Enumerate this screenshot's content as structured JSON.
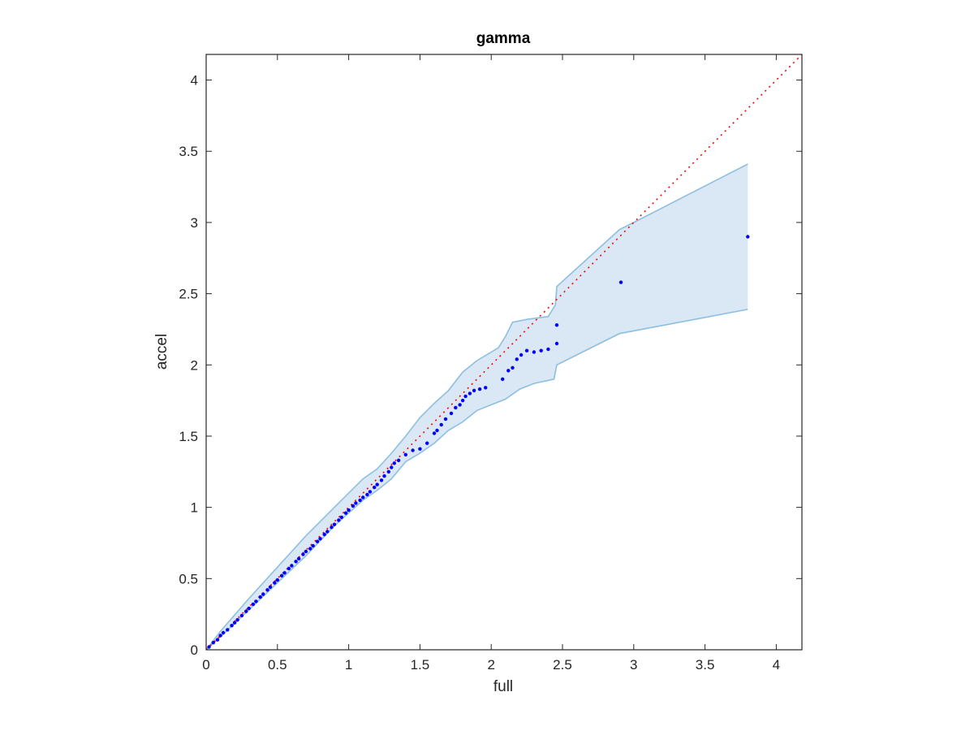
{
  "chart_data": {
    "type": "scatter",
    "title": "gamma",
    "xlabel": "full",
    "ylabel": "accel",
    "xlim": [
      0,
      4.18
    ],
    "ylim": [
      0,
      4.18
    ],
    "xticks": [
      "0",
      "0.5",
      "1",
      "1.5",
      "2",
      "2.5",
      "3",
      "3.5",
      "4"
    ],
    "yticks": [
      "0",
      "0.5",
      "1",
      "1.5",
      "2",
      "2.5",
      "3",
      "3.5",
      "4"
    ],
    "grid": false,
    "colors": {
      "points": "#0000ff",
      "reference_line": "#ff0000",
      "band_fill": "#d9e8f4",
      "band_edge": "#8dbfe0",
      "axes": "#262626"
    },
    "reference_line": {
      "style": "dotted",
      "from": [
        0,
        0
      ],
      "to": [
        4.18,
        4.18
      ]
    },
    "band_upper": [
      [
        0,
        0
      ],
      [
        0.1,
        0.13
      ],
      [
        0.3,
        0.36
      ],
      [
        0.5,
        0.58
      ],
      [
        0.7,
        0.8
      ],
      [
        0.9,
        1.0
      ],
      [
        1.1,
        1.2
      ],
      [
        1.2,
        1.27
      ],
      [
        1.3,
        1.38
      ],
      [
        1.4,
        1.5
      ],
      [
        1.5,
        1.63
      ],
      [
        1.6,
        1.73
      ],
      [
        1.7,
        1.82
      ],
      [
        1.8,
        1.95
      ],
      [
        1.9,
        2.03
      ],
      [
        2.05,
        2.12
      ],
      [
        2.1,
        2.2
      ],
      [
        2.15,
        2.3
      ],
      [
        2.25,
        2.32
      ],
      [
        2.4,
        2.34
      ],
      [
        2.45,
        2.42
      ],
      [
        2.46,
        2.55
      ],
      [
        2.9,
        2.95
      ],
      [
        3.0,
        3.0
      ],
      [
        3.8,
        3.41
      ]
    ],
    "band_lower": [
      [
        0,
        0
      ],
      [
        0.1,
        0.09
      ],
      [
        0.3,
        0.28
      ],
      [
        0.5,
        0.47
      ],
      [
        0.7,
        0.66
      ],
      [
        0.9,
        0.87
      ],
      [
        1.1,
        1.05
      ],
      [
        1.2,
        1.12
      ],
      [
        1.3,
        1.2
      ],
      [
        1.4,
        1.32
      ],
      [
        1.5,
        1.38
      ],
      [
        1.6,
        1.45
      ],
      [
        1.7,
        1.54
      ],
      [
        1.8,
        1.6
      ],
      [
        1.9,
        1.68
      ],
      [
        2.0,
        1.72
      ],
      [
        2.1,
        1.76
      ],
      [
        2.2,
        1.83
      ],
      [
        2.3,
        1.87
      ],
      [
        2.44,
        1.9
      ],
      [
        2.46,
        2.0
      ],
      [
        2.9,
        2.22
      ],
      [
        3.8,
        2.39
      ]
    ],
    "points": [
      [
        0.02,
        0.02
      ],
      [
        0.05,
        0.05
      ],
      [
        0.08,
        0.07
      ],
      [
        0.1,
        0.1
      ],
      [
        0.12,
        0.12
      ],
      [
        0.15,
        0.14
      ],
      [
        0.18,
        0.17
      ],
      [
        0.2,
        0.19
      ],
      [
        0.22,
        0.21
      ],
      [
        0.25,
        0.24
      ],
      [
        0.28,
        0.27
      ],
      [
        0.3,
        0.29
      ],
      [
        0.33,
        0.32
      ],
      [
        0.35,
        0.34
      ],
      [
        0.38,
        0.37
      ],
      [
        0.4,
        0.39
      ],
      [
        0.43,
        0.42
      ],
      [
        0.45,
        0.44
      ],
      [
        0.48,
        0.47
      ],
      [
        0.5,
        0.49
      ],
      [
        0.53,
        0.52
      ],
      [
        0.55,
        0.54
      ],
      [
        0.58,
        0.57
      ],
      [
        0.6,
        0.59
      ],
      [
        0.63,
        0.62
      ],
      [
        0.65,
        0.64
      ],
      [
        0.68,
        0.67
      ],
      [
        0.7,
        0.69
      ],
      [
        0.73,
        0.71
      ],
      [
        0.75,
        0.73
      ],
      [
        0.78,
        0.76
      ],
      [
        0.8,
        0.78
      ],
      [
        0.83,
        0.81
      ],
      [
        0.85,
        0.83
      ],
      [
        0.88,
        0.86
      ],
      [
        0.9,
        0.88
      ],
      [
        0.93,
        0.91
      ],
      [
        0.95,
        0.93
      ],
      [
        0.98,
        0.96
      ],
      [
        1.0,
        0.98
      ],
      [
        1.03,
        1.01
      ],
      [
        1.05,
        1.03
      ],
      [
        1.08,
        1.05
      ],
      [
        1.1,
        1.07
      ],
      [
        1.13,
        1.09
      ],
      [
        1.15,
        1.11
      ],
      [
        1.18,
        1.14
      ],
      [
        1.2,
        1.16
      ],
      [
        1.23,
        1.19
      ],
      [
        1.25,
        1.22
      ],
      [
        1.28,
        1.25
      ],
      [
        1.3,
        1.28
      ],
      [
        1.32,
        1.31
      ],
      [
        1.35,
        1.33
      ],
      [
        1.4,
        1.37
      ],
      [
        1.45,
        1.4
      ],
      [
        1.5,
        1.41
      ],
      [
        1.55,
        1.45
      ],
      [
        1.6,
        1.52
      ],
      [
        1.62,
        1.54
      ],
      [
        1.65,
        1.58
      ],
      [
        1.68,
        1.62
      ],
      [
        1.72,
        1.66
      ],
      [
        1.75,
        1.7
      ],
      [
        1.78,
        1.72
      ],
      [
        1.8,
        1.75
      ],
      [
        1.82,
        1.78
      ],
      [
        1.85,
        1.8
      ],
      [
        1.88,
        1.82
      ],
      [
        1.92,
        1.83
      ],
      [
        1.96,
        1.84
      ],
      [
        2.08,
        1.9
      ],
      [
        2.12,
        1.96
      ],
      [
        2.15,
        1.98
      ],
      [
        2.18,
        2.04
      ],
      [
        2.21,
        2.07
      ],
      [
        2.25,
        2.1
      ],
      [
        2.3,
        2.09
      ],
      [
        2.35,
        2.1
      ],
      [
        2.4,
        2.11
      ],
      [
        2.46,
        2.15
      ],
      [
        2.46,
        2.28
      ],
      [
        2.91,
        2.58
      ],
      [
        3.8,
        2.9
      ]
    ]
  }
}
